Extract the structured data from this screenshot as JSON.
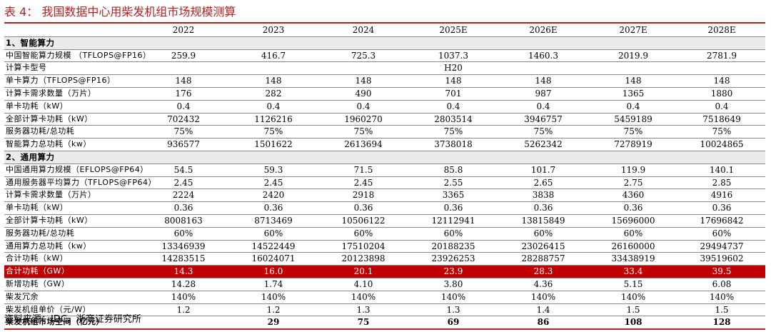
{
  "title": "表 4： 我国数据中心用柴发机组市场规模测算",
  "headers": [
    "",
    "2022",
    "2023",
    "2024",
    "2025E",
    "2026E",
    "2027E",
    "2028E"
  ],
  "rows": [
    {
      "type": "section",
      "label": "1、智能算力"
    },
    {
      "label": "中国智能算力规模 （TFLOPS@FP16）",
      "values": [
        "259.9",
        "416.7",
        "725.3",
        "1037.3",
        "1460.3",
        "2019.9",
        "2781.9"
      ]
    },
    {
      "label": "计算卡型号",
      "values": [
        "",
        "",
        "",
        "H20",
        "",
        "",
        ""
      ]
    },
    {
      "label": "单卡算力（TFLOPS@FP16）",
      "values": [
        "148",
        "148",
        "148",
        "148",
        "148",
        "148",
        "148"
      ]
    },
    {
      "label": "计算卡需求数量（万片）",
      "values": [
        "176",
        "282",
        "490",
        "701",
        "987",
        "1365",
        "1880"
      ]
    },
    {
      "label": "单卡功耗（kW）",
      "values": [
        "0.4",
        "0.4",
        "0.4",
        "0.4",
        "0.4",
        "0.4",
        "0.4"
      ]
    },
    {
      "label": "全部计算卡功耗（kW）",
      "values": [
        "702432",
        "1126216",
        "1960270",
        "2803514",
        "3946757",
        "5459189",
        "7518649"
      ]
    },
    {
      "label": "服务器功耗/总功耗",
      "values": [
        "75%",
        "75%",
        "75%",
        "75%",
        "75%",
        "75%",
        "75%"
      ]
    },
    {
      "label": "智能算力总功耗（kw）",
      "values": [
        "936577",
        "1501622",
        "2613694",
        "3738018",
        "5262342",
        "7278919",
        "10024865"
      ]
    },
    {
      "type": "section",
      "label": "2、通用算力"
    },
    {
      "label": "中国通用算力规模（EFLOPS@FP64）",
      "values": [
        "54.5",
        "59.3",
        "71.5",
        "85.8",
        "101.7",
        "119.9",
        "140.1"
      ]
    },
    {
      "label": "通用服务器平均算力（TFLOPS@FP64）",
      "values": [
        "2.45",
        "2.45",
        "2.45",
        "2.55",
        "2.65",
        "2.75",
        "2.85"
      ]
    },
    {
      "label": "计算卡需求数量（万片）",
      "values": [
        "2224",
        "2420",
        "2918",
        "3365",
        "3838",
        "4360",
        "4916"
      ]
    },
    {
      "label": "单卡功耗（kW）",
      "values": [
        "0.36",
        "0.36",
        "0.36",
        "0.36",
        "0.36",
        "0.36",
        "0.36"
      ]
    },
    {
      "label": "全部计算卡功耗（kW）",
      "values": [
        "8008163",
        "8713469",
        "10506122",
        "12112941",
        "13815849",
        "15696000",
        "17696842"
      ]
    },
    {
      "label": "服务器功耗/总功耗",
      "values": [
        "60%",
        "60%",
        "60%",
        "60%",
        "60%",
        "60%",
        "60%"
      ]
    },
    {
      "label": "通用算力总功耗（kw）",
      "values": [
        "13346939",
        "14522449",
        "17510204",
        "20188235",
        "23026415",
        "26160000",
        "29494737"
      ]
    },
    {
      "label": "合计功耗（kW）",
      "values": [
        "14283515",
        "16024071",
        "20123898",
        "23926253",
        "28288757",
        "33438919",
        "39519602"
      ]
    },
    {
      "type": "highlight",
      "label": "合计功耗（GW）",
      "values": [
        "14.3",
        "16.0",
        "20.1",
        "23.9",
        "28.3",
        "33.4",
        "39.5"
      ]
    },
    {
      "label": "新增功耗（GW）",
      "values": [
        "14.28",
        "1.74",
        "4.10",
        "3.80",
        "4.36",
        "5.15",
        "6.08"
      ]
    },
    {
      "label": "柴发冗余",
      "values": [
        "140%",
        "140%",
        "140%",
        "140%",
        "140%",
        "140%",
        "140%"
      ]
    },
    {
      "label": "柴发机组单价（元/W）",
      "values": [
        "1.2",
        "1.2",
        "1.3",
        "1.3",
        "1.4",
        "1.5",
        "1.5"
      ]
    },
    {
      "type": "bold",
      "label": "柴发机组市场空间（亿元）",
      "values": [
        "",
        "29",
        "75",
        "69",
        "86",
        "108",
        "128"
      ]
    }
  ],
  "source": "资料来源：IDC，浙商证券研究所"
}
